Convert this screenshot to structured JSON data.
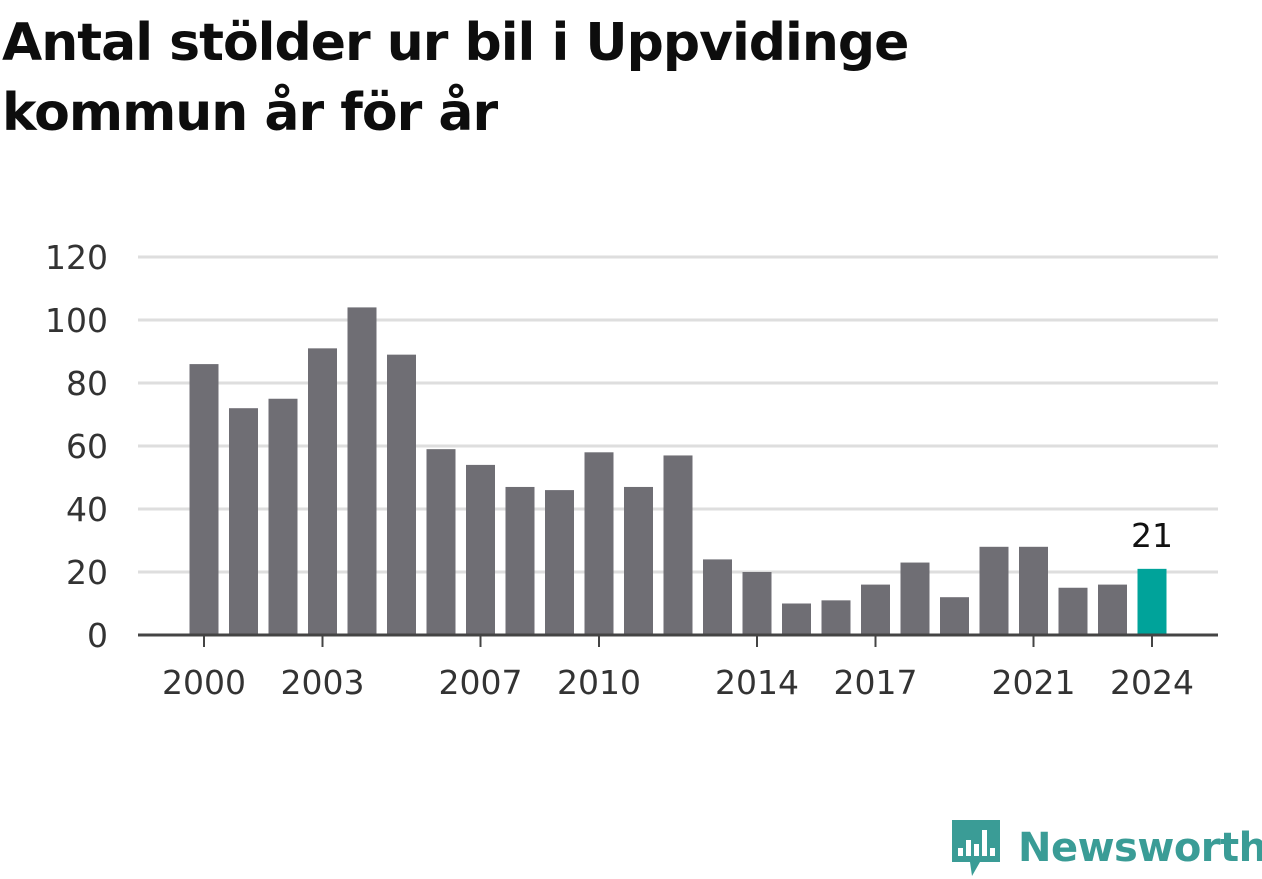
{
  "title": "Antal stölder ur bil i Uppvidinge kommun år för år",
  "colors": {
    "bar": "#6f6e74",
    "highlight": "#00a39a",
    "grid": "#dedede",
    "axis": "#444444",
    "brand": "#3a9c96"
  },
  "chart_data": {
    "type": "bar",
    "title": "Antal stölder ur bil i Uppvidinge kommun år för år",
    "xlabel": "",
    "ylabel": "",
    "ylim": [
      0,
      120
    ],
    "yticks": [
      0,
      20,
      40,
      60,
      80,
      100,
      120
    ],
    "grid": true,
    "categories": [
      "2000",
      "2001",
      "2002",
      "2003",
      "2004",
      "2005",
      "2006",
      "2007",
      "2008",
      "2009",
      "2010",
      "2011",
      "2012",
      "2013",
      "2014",
      "2015",
      "2016",
      "2017",
      "2018",
      "2019",
      "2020",
      "2021",
      "2022",
      "2023",
      "2024"
    ],
    "xtick_labels": [
      "2000",
      "2003",
      "2007",
      "2010",
      "2014",
      "2017",
      "2021",
      "2024"
    ],
    "values": [
      86,
      72,
      75,
      91,
      104,
      89,
      59,
      54,
      47,
      46,
      58,
      47,
      57,
      24,
      20,
      10,
      11,
      16,
      23,
      12,
      28,
      28,
      15,
      16,
      21
    ],
    "highlight": {
      "category": "2024",
      "label": "21"
    }
  },
  "brand": {
    "name": "Newsworthy",
    "icon": "bar-chart-speech-bubble-icon"
  }
}
